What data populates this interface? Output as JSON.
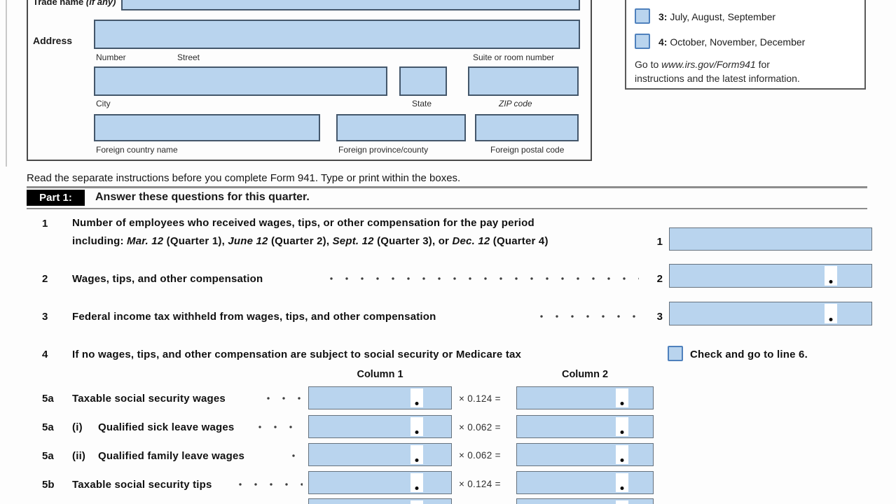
{
  "form_header": {
    "trade_name_label_segments": [
      {
        "t": "Trade name ",
        "b": true
      },
      {
        "t": "(if any)",
        "i": true
      }
    ],
    "address_label": "Address",
    "captions": {
      "number": "Number",
      "street": "Street",
      "suite": "Suite or room number",
      "city": "City",
      "state": "State",
      "zip": "ZIP code",
      "foreign_country": "Foreign country name",
      "foreign_province": "Foreign province/county",
      "foreign_postal": "Foreign postal code"
    }
  },
  "quarter_box": {
    "options": [
      {
        "num": "3:",
        "label": " July, August, September"
      },
      {
        "num": "4:",
        "label": " October, November, December"
      }
    ],
    "goto_line1_segments": [
      {
        "t": "Go to "
      },
      {
        "t": "www.irs.gov/Form941",
        "i": true
      },
      {
        "t": " for"
      }
    ],
    "goto_line2": "instructions and the latest information."
  },
  "instructions": "Read the separate instructions before you complete Form 941. Type or print within the boxes.",
  "part1": {
    "badge": "Part 1:",
    "title": "Answer these questions for this quarter."
  },
  "lines": {
    "l1": {
      "num": "1",
      "text1": "Number of employees who received wages, tips, or other compensation for the pay period",
      "text2_segments": [
        {
          "t": "including: "
        },
        {
          "t": "Mar. 12",
          "i": true
        },
        {
          "t": " (Quarter 1), "
        },
        {
          "t": "June 12",
          "i": true
        },
        {
          "t": " (Quarter 2), "
        },
        {
          "t": "Sept. 12",
          "i": true
        },
        {
          "t": " (Quarter 3), or "
        },
        {
          "t": "Dec. 12",
          "i": true
        },
        {
          "t": " (Quarter 4)"
        }
      ]
    },
    "l2": {
      "num": "2",
      "text": "Wages, tips, and other compensation"
    },
    "l3": {
      "num": "3",
      "text": "Federal income tax withheld from wages, tips, and other compensation"
    },
    "l4": {
      "num": "4",
      "text": "If no wages, tips, and other compensation are subject to social security or Medicare tax",
      "checkbox_label": "Check and go to line 6."
    },
    "col1_header": "Column 1",
    "col2_header": "Column 2",
    "rows5": [
      {
        "num": "5a",
        "sub": "",
        "text": "Taxable social security wages",
        "factor": "× 0.124 ="
      },
      {
        "num": "5a",
        "sub": "(i)",
        "text": "Qualified sick leave wages",
        "factor": "× 0.062 ="
      },
      {
        "num": "5a",
        "sub": "(ii)",
        "text": "Qualified family leave wages",
        "factor": "× 0.062 ="
      },
      {
        "num": "5b",
        "sub": "",
        "text": "Taxable social security tips",
        "factor": "× 0.124 ="
      }
    ]
  },
  "colors": {
    "field_fill": "#b9d4ee",
    "field_border_large": "#44576b",
    "field_border_small": "#66727e",
    "checkbox_border": "#4f81bd",
    "part_badge_bg": "#000000",
    "rule_gray": "#8d8d8d"
  }
}
